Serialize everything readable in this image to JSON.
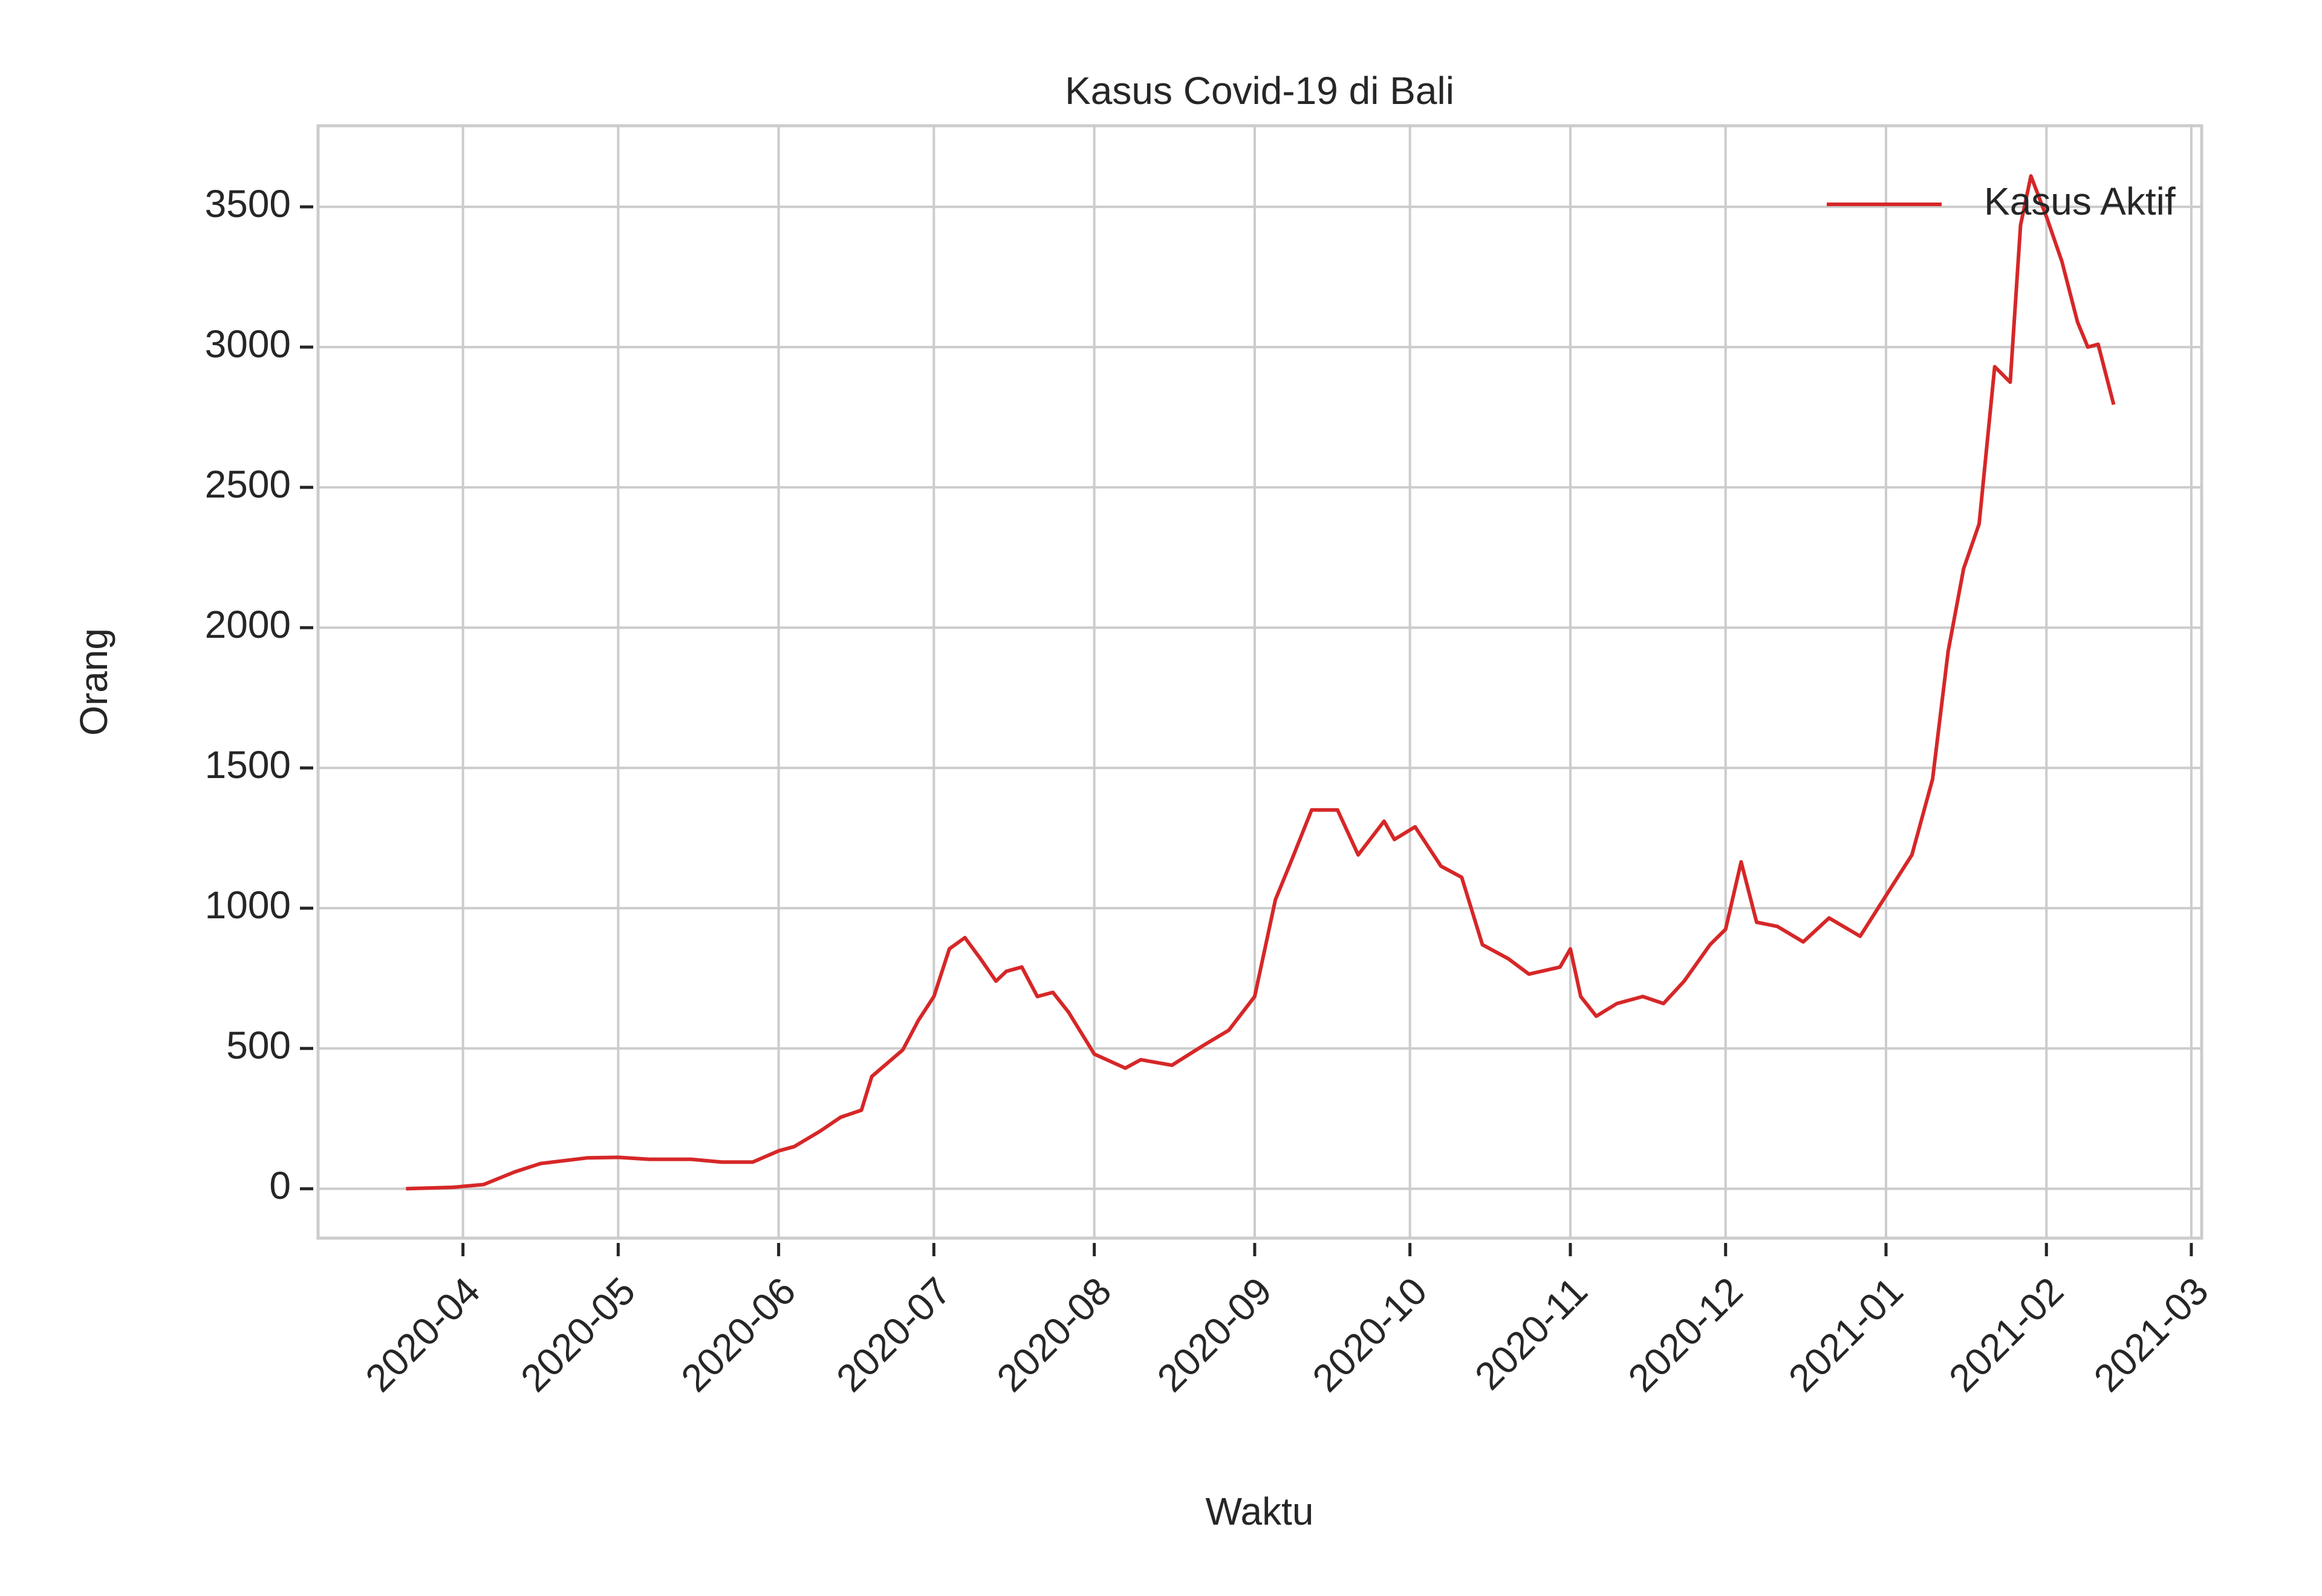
{
  "chart_data": {
    "type": "line",
    "title": "Kasus Covid-19 di Bali",
    "xlabel": "Waktu",
    "ylabel": "Orang",
    "x": [
      "2020-03-21",
      "2020-03-30",
      "2020-04-05",
      "2020-04-11",
      "2020-04-16",
      "2020-04-25",
      "2020-05-01",
      "2020-05-07",
      "2020-05-15",
      "2020-05-21",
      "2020-05-27",
      "2020-06-01",
      "2020-06-04",
      "2020-06-09",
      "2020-06-13",
      "2020-06-17",
      "2020-06-19",
      "2020-06-25",
      "2020-06-28",
      "2020-07-01",
      "2020-07-04",
      "2020-07-07",
      "2020-07-10",
      "2020-07-13",
      "2020-07-15",
      "2020-07-18",
      "2020-07-21",
      "2020-07-24",
      "2020-07-27",
      "2020-08-01",
      "2020-08-07",
      "2020-08-10",
      "2020-08-16",
      "2020-08-22",
      "2020-08-27",
      "2020-09-01",
      "2020-09-05",
      "2020-09-08",
      "2020-09-12",
      "2020-09-17",
      "2020-09-21",
      "2020-09-26",
      "2020-09-28",
      "2020-10-02",
      "2020-10-07",
      "2020-10-11",
      "2020-10-15",
      "2020-10-20",
      "2020-10-24",
      "2020-10-30",
      "2020-11-01",
      "2020-11-03",
      "2020-11-06",
      "2020-11-10",
      "2020-11-15",
      "2020-11-19",
      "2020-11-23",
      "2020-11-28",
      "2020-12-01",
      "2020-12-04",
      "2020-12-07",
      "2020-12-11",
      "2020-12-16",
      "2020-12-21",
      "2020-12-27",
      "2021-01-01",
      "2021-01-06",
      "2021-01-10",
      "2021-01-13",
      "2021-01-16",
      "2021-01-19",
      "2021-01-22",
      "2021-01-25",
      "2021-01-27",
      "2021-01-29",
      "2021-02-01",
      "2021-02-04",
      "2021-02-07",
      "2021-02-09",
      "2021-02-11",
      "2021-02-14"
    ],
    "series": [
      {
        "name": "Kasus Aktif",
        "color": "#d62728",
        "values": [
          0,
          5,
          15,
          60,
          90,
          110,
          112,
          105,
          105,
          95,
          95,
          135,
          150,
          205,
          255,
          280,
          400,
          495,
          600,
          685,
          855,
          895,
          820,
          740,
          775,
          790,
          685,
          700,
          630,
          480,
          430,
          460,
          440,
          510,
          565,
          685,
          1030,
          1165,
          1350,
          1350,
          1190,
          1310,
          1245,
          1290,
          1150,
          1110,
          870,
          820,
          765,
          790,
          855,
          685,
          615,
          660,
          685,
          660,
          740,
          870,
          925,
          1165,
          950,
          935,
          880,
          965,
          900,
          1045,
          1190,
          1460,
          1915,
          2210,
          2370,
          2930,
          2875,
          3435,
          3610,
          3465,
          3305,
          3090,
          3000,
          3010,
          2795
        ]
      }
    ],
    "xlim": [
      "2020-03-04",
      "2021-03-03"
    ],
    "xticks": [
      {
        "value": "2020-04-01",
        "label": "2020-04"
      },
      {
        "value": "2020-05-01",
        "label": "2020-05"
      },
      {
        "value": "2020-06-01",
        "label": "2020-06"
      },
      {
        "value": "2020-07-01",
        "label": "2020-07"
      },
      {
        "value": "2020-08-01",
        "label": "2020-08"
      },
      {
        "value": "2020-09-01",
        "label": "2020-09"
      },
      {
        "value": "2020-10-01",
        "label": "2020-10"
      },
      {
        "value": "2020-11-01",
        "label": "2020-11"
      },
      {
        "value": "2020-12-01",
        "label": "2020-12"
      },
      {
        "value": "2021-01-01",
        "label": "2021-01"
      },
      {
        "value": "2021-02-01",
        "label": "2021-02"
      },
      {
        "value": "2021-03-01",
        "label": "2021-03"
      }
    ],
    "ylim": [
      -176,
      3789
    ],
    "yticks": [
      0,
      500,
      1000,
      1500,
      2000,
      2500,
      3000,
      3500
    ],
    "grid": true,
    "legend": "upper right"
  }
}
